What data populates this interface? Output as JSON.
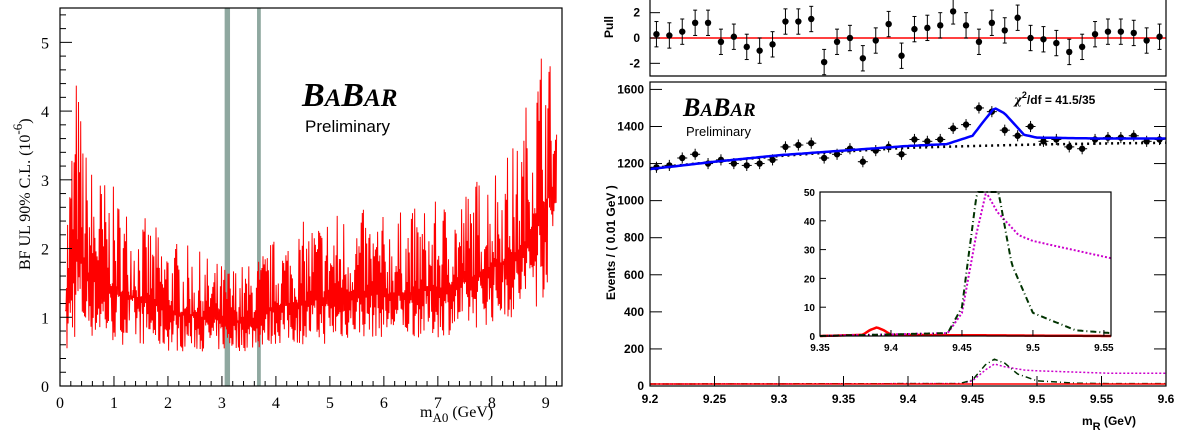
{
  "chart_data": [
    {
      "type": "line",
      "panel": "left",
      "logo": "BABAR",
      "logo_parts": [
        "B",
        "A",
        "B",
        "AR"
      ],
      "subtitle": "Preliminary",
      "ylabel_main": "BF UL  90% C.L. (10",
      "ylabel_exp": "-6",
      "ylabel_close": ")",
      "xlabel_main": "m",
      "xlabel_sub": "A0",
      "xlabel_unit": " (GeV)",
      "xlim": [
        0,
        9.3
      ],
      "ylim": [
        0,
        5.5
      ],
      "xticks": [
        "0",
        "1",
        "2",
        "3",
        "4",
        "5",
        "6",
        "7",
        "8",
        "9"
      ],
      "yticks": [
        "0",
        "1",
        "2",
        "3",
        "4",
        "5"
      ],
      "series_color": "#ff0000",
      "band_color": "#8fa8a0",
      "vetoed_regions": [
        [
          3.05,
          3.15
        ],
        [
          3.65,
          3.72
        ]
      ],
      "envelope": {
        "x": [
          0.1,
          0.3,
          0.5,
          1.0,
          1.5,
          2.0,
          2.5,
          3.0,
          3.5,
          4.0,
          4.5,
          5.0,
          5.5,
          6.0,
          6.5,
          7.0,
          7.5,
          8.0,
          8.5,
          8.8,
          9.0,
          9.2
        ],
        "upper": [
          2.6,
          4.7,
          3.4,
          2.9,
          2.5,
          2.2,
          2.0,
          1.8,
          1.8,
          2.2,
          2.4,
          2.6,
          2.6,
          2.5,
          2.6,
          2.7,
          2.9,
          3.3,
          3.6,
          4.9,
          5.3,
          4.1
        ],
        "lower": [
          0.3,
          0.7,
          0.7,
          0.6,
          0.6,
          0.5,
          0.5,
          0.5,
          0.5,
          0.6,
          0.6,
          0.6,
          0.7,
          0.7,
          0.7,
          0.7,
          0.8,
          0.9,
          1.0,
          1.1,
          1.3,
          2.4
        ]
      }
    },
    {
      "type": "scatter",
      "panel": "right-pull",
      "ylabel": "Pull",
      "yticks": [
        "2",
        "0",
        "-2"
      ],
      "ylim": [
        -3,
        3
      ],
      "xlim": [
        9.2,
        9.6
      ],
      "x": [
        9.205,
        9.215,
        9.225,
        9.235,
        9.245,
        9.255,
        9.265,
        9.275,
        9.285,
        9.295,
        9.305,
        9.315,
        9.325,
        9.335,
        9.345,
        9.355,
        9.365,
        9.375,
        9.385,
        9.395,
        9.405,
        9.415,
        9.425,
        9.435,
        9.445,
        9.455,
        9.465,
        9.475,
        9.485,
        9.495,
        9.505,
        9.515,
        9.525,
        9.535,
        9.545,
        9.555,
        9.565,
        9.575,
        9.585,
        9.595
      ],
      "y": [
        0.3,
        0.2,
        0.5,
        1.2,
        1.2,
        -0.3,
        0.1,
        -0.7,
        -1.0,
        -0.5,
        1.3,
        1.3,
        1.5,
        -1.9,
        -0.3,
        0.0,
        -1.6,
        -0.2,
        1.1,
        -1.4,
        0.7,
        0.8,
        1.0,
        2.1,
        1.0,
        -0.3,
        1.2,
        0.6,
        1.6,
        0.0,
        -0.1,
        -0.4,
        -1.1,
        -0.7,
        0.3,
        0.5,
        0.5,
        0.4,
        -0.2,
        0.1
      ],
      "err": 1
    },
    {
      "type": "scatter",
      "panel": "right-main",
      "logo": "BABAR",
      "logo_parts": [
        "B",
        "A",
        "B",
        "AR"
      ],
      "subtitle": "Preliminary",
      "annotation_chi": "χ",
      "annotation_chi_exp": "2",
      "annotation_rest": "/df = 41.5/35",
      "ylabel": "Events / ( 0.01 GeV )",
      "xlabel_main": "m",
      "xlabel_sub": "R",
      "xlabel_unit": " (GeV)",
      "xlim": [
        9.2,
        9.6
      ],
      "ylim": [
        0,
        1640
      ],
      "xticks": [
        "9.2",
        "9.25",
        "9.3",
        "9.35",
        "9.4",
        "9.45",
        "9.5",
        "9.55",
        "9.6"
      ],
      "yticks": [
        "0",
        "200",
        "400",
        "600",
        "800",
        "1000",
        "1200",
        "1400",
        "1600"
      ],
      "x": [
        9.205,
        9.215,
        9.225,
        9.235,
        9.245,
        9.255,
        9.265,
        9.275,
        9.285,
        9.295,
        9.305,
        9.315,
        9.325,
        9.335,
        9.345,
        9.355,
        9.365,
        9.375,
        9.385,
        9.395,
        9.405,
        9.415,
        9.425,
        9.435,
        9.445,
        9.455,
        9.465,
        9.475,
        9.485,
        9.495,
        9.505,
        9.515,
        9.525,
        9.535,
        9.545,
        9.555,
        9.565,
        9.575,
        9.585,
        9.595
      ],
      "y": [
        1180,
        1190,
        1230,
        1250,
        1200,
        1220,
        1200,
        1190,
        1200,
        1220,
        1290,
        1300,
        1310,
        1230,
        1250,
        1280,
        1210,
        1270,
        1290,
        1250,
        1330,
        1320,
        1330,
        1390,
        1410,
        1500,
        1480,
        1380,
        1350,
        1400,
        1320,
        1330,
        1290,
        1280,
        1330,
        1340,
        1340,
        1350,
        1320,
        1330
      ],
      "err": 30,
      "fit_total": {
        "x": [
          9.2,
          9.25,
          9.3,
          9.35,
          9.4,
          9.43,
          9.45,
          9.46,
          9.467,
          9.475,
          9.49,
          9.5,
          9.55,
          9.6
        ],
        "y": [
          1170,
          1210,
          1245,
          1270,
          1295,
          1305,
          1350,
          1440,
          1500,
          1470,
          1355,
          1340,
          1335,
          1335
        ]
      },
      "fit_background": {
        "x": [
          9.2,
          9.25,
          9.3,
          9.35,
          9.4,
          9.45,
          9.5,
          9.55,
          9.6
        ],
        "y": [
          1175,
          1210,
          1240,
          1265,
          1285,
          1295,
          1303,
          1308,
          1312
        ]
      },
      "colors": {
        "total": "#0000ff",
        "background": "#000000",
        "points": "#000000"
      },
      "inset": {
        "xlim": [
          9.35,
          9.555
        ],
        "ylim": [
          0,
          50
        ],
        "xticks": [
          "9.35",
          "9.4",
          "9.45",
          "9.5",
          "9.55"
        ],
        "yticks": [
          "0",
          "10",
          "20",
          "30",
          "40",
          "50"
        ],
        "series": [
          {
            "color": "#ff0000",
            "style": "solid",
            "x": [
              9.35,
              9.38,
              9.385,
              9.39,
              9.395,
              9.4,
              9.555
            ],
            "y": [
              0,
              0.4,
              2,
              3,
              2,
              0.4,
              0
            ]
          },
          {
            "color": "#cc00cc",
            "style": "dotted",
            "x": [
              9.35,
              9.44,
              9.45,
              9.46,
              9.467,
              9.475,
              9.49,
              9.5,
              9.555
            ],
            "y": [
              0,
              1,
              8,
              35,
              50,
              43,
              35,
              33,
              27
            ]
          },
          {
            "color": "#003300",
            "style": "dashdot",
            "x": [
              9.35,
              9.44,
              9.45,
              9.46,
              9.467,
              9.475,
              9.485,
              9.5,
              9.53,
              9.555
            ],
            "y": [
              0,
              1,
              10,
              48,
              62,
              52,
              25,
              8,
              2,
              1
            ]
          }
        ]
      }
    }
  ]
}
